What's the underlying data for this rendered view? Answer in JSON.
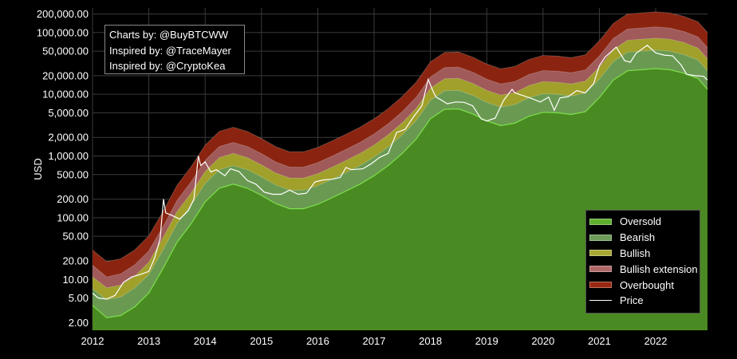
{
  "credits": {
    "line1": "Charts by: @BuyBTCWW",
    "line2": "Inspired by: @TraceMayer",
    "line3": "Inspired by: @CryptoKea"
  },
  "chart_data": {
    "type": "area",
    "ylabel": "USD",
    "yscale": "log",
    "ylim": [
      1.5,
      250000
    ],
    "xlim": [
      2012.0,
      2022.92
    ],
    "y_ticks": [
      2,
      5,
      10,
      20,
      50,
      100,
      200,
      500,
      1000,
      2000,
      5000,
      10000,
      20000,
      50000,
      100000,
      200000
    ],
    "y_tick_labels": [
      "2.00",
      "5.00",
      "10.00",
      "20.00",
      "50.00",
      "100.00",
      "200.00",
      "500.00",
      "1,000.00",
      "2,000.00",
      "5,000.00",
      "10,000.00",
      "20,000.00",
      "50,000.00",
      "100,000.00",
      "200,000.00"
    ],
    "x_ticks": [
      2012,
      2013,
      2014,
      2015,
      2016,
      2017,
      2018,
      2019,
      2020,
      2021,
      2022
    ],
    "x_tick_labels": [
      "2012",
      "2013",
      "2014",
      "2015",
      "2016",
      "2017",
      "2018",
      "2019",
      "2020",
      "2021",
      "2022"
    ],
    "grid": true,
    "legend_position": "bottom-right",
    "x": [
      2012.0,
      2012.25,
      2012.5,
      2012.75,
      2013.0,
      2013.25,
      2013.5,
      2013.75,
      2014.0,
      2014.25,
      2014.5,
      2014.75,
      2015.0,
      2015.25,
      2015.5,
      2015.75,
      2016.0,
      2016.25,
      2016.5,
      2016.75,
      2017.0,
      2017.25,
      2017.5,
      2017.75,
      2018.0,
      2018.25,
      2018.5,
      2018.75,
      2019.0,
      2019.25,
      2019.5,
      2019.75,
      2020.0,
      2020.25,
      2020.5,
      2020.75,
      2021.0,
      2021.25,
      2021.5,
      2021.75,
      2022.0,
      2022.25,
      2022.5,
      2022.75,
      2022.92
    ],
    "bands": [
      {
        "name": "Oversold",
        "color": "#4a8a22",
        "upper": [
          3.8,
          2.4,
          2.6,
          3.6,
          6,
          15,
          40,
          80,
          180,
          300,
          350,
          300,
          230,
          170,
          140,
          140,
          165,
          210,
          270,
          350,
          480,
          700,
          1100,
          1900,
          4000,
          5700,
          5800,
          4800,
          3700,
          3100,
          3400,
          4400,
          5100,
          5000,
          4700,
          5200,
          8800,
          17000,
          24000,
          25000,
          26000,
          25000,
          22000,
          18000,
          12000
        ]
      },
      {
        "name": "Bearish",
        "color": "#6a9a52",
        "upper": [
          7,
          4.7,
          5.2,
          7.3,
          12,
          30,
          80,
          160,
          360,
          600,
          700,
          600,
          460,
          340,
          280,
          280,
          330,
          420,
          540,
          700,
          960,
          1400,
          2200,
          3800,
          8000,
          11400,
          11600,
          9600,
          7400,
          6200,
          6800,
          8800,
          10200,
          10000,
          9400,
          10400,
          17600,
          34000,
          48000,
          50000,
          52000,
          50000,
          44000,
          36000,
          24000
        ]
      },
      {
        "name": "Bullish",
        "color": "#a0a02a",
        "upper": [
          11,
          7.3,
          8.1,
          11.3,
          19,
          47,
          125,
          250,
          560,
          940,
          1100,
          940,
          720,
          530,
          440,
          440,
          515,
          655,
          845,
          1100,
          1500,
          2200,
          3450,
          5950,
          12500,
          17800,
          18100,
          15000,
          11600,
          9700,
          10600,
          13800,
          16000,
          15600,
          14700,
          16300,
          27500,
          53000,
          75000,
          78000,
          81000,
          78000,
          69000,
          56000,
          37500
        ]
      },
      {
        "name": "Bullish extension",
        "color": "#a05a5a",
        "upper": [
          17,
          11,
          12.3,
          17.2,
          29,
          71,
          190,
          380,
          850,
          1420,
          1660,
          1420,
          1090,
          800,
          660,
          660,
          780,
          990,
          1280,
          1660,
          2270,
          3320,
          5220,
          9000,
          19000,
          27000,
          27500,
          22800,
          17600,
          14700,
          16100,
          20900,
          24200,
          23700,
          22300,
          24700,
          41700,
          80500,
          114000,
          118000,
          123000,
          118000,
          104000,
          85000,
          57000
        ]
      },
      {
        "name": "Overbought",
        "color": "#8a2410",
        "upper": [
          30,
          19.5,
          21.6,
          30,
          51,
          125,
          335,
          670,
          1500,
          2500,
          2920,
          2500,
          1920,
          1420,
          1170,
          1170,
          1375,
          1750,
          2250,
          2920,
          4000,
          5850,
          9200,
          15850,
          33400,
          47500,
          48300,
          40000,
          31000,
          25900,
          28300,
          36700,
          42600,
          41600,
          39200,
          43400,
          73300,
          141000,
          200000,
          208000,
          216000,
          208000,
          183000,
          150000,
          100000
        ]
      }
    ],
    "price": {
      "name": "Price",
      "color": "#ffffff",
      "x": [
        2012.0,
        2012.1,
        2012.25,
        2012.4,
        2012.55,
        2012.7,
        2012.85,
        2013.0,
        2013.1,
        2013.2,
        2013.26,
        2013.3,
        2013.4,
        2013.55,
        2013.7,
        2013.8,
        2013.88,
        2013.92,
        2014.0,
        2014.1,
        2014.2,
        2014.35,
        2014.45,
        2014.6,
        2014.75,
        2014.9,
        2015.05,
        2015.2,
        2015.35,
        2015.5,
        2015.65,
        2015.8,
        2015.95,
        2016.1,
        2016.25,
        2016.4,
        2016.5,
        2016.6,
        2016.8,
        2016.95,
        2017.1,
        2017.25,
        2017.4,
        2017.55,
        2017.7,
        2017.85,
        2017.96,
        2018.05,
        2018.1,
        2018.2,
        2018.3,
        2018.45,
        2018.6,
        2018.75,
        2018.9,
        2019.0,
        2019.15,
        2019.3,
        2019.45,
        2019.5,
        2019.65,
        2019.8,
        2019.95,
        2020.1,
        2020.2,
        2020.3,
        2020.45,
        2020.6,
        2020.75,
        2020.9,
        2021.0,
        2021.1,
        2021.3,
        2021.45,
        2021.55,
        2021.65,
        2021.85,
        2022.0,
        2022.15,
        2022.3,
        2022.45,
        2022.55,
        2022.7,
        2022.85,
        2022.92
      ],
      "y": [
        6,
        5,
        4.8,
        5.5,
        9,
        11,
        12,
        13.5,
        22,
        45,
        200,
        120,
        110,
        95,
        130,
        200,
        1000,
        700,
        800,
        550,
        600,
        480,
        620,
        560,
        400,
        350,
        260,
        240,
        240,
        280,
        240,
        250,
        380,
        410,
        420,
        450,
        650,
        600,
        620,
        750,
        950,
        1100,
        2400,
        2700,
        4300,
        6500,
        17500,
        11000,
        9000,
        8000,
        7000,
        7500,
        7400,
        6500,
        4000,
        3700,
        4100,
        8000,
        12000,
        10500,
        9500,
        8500,
        7500,
        9000,
        5500,
        8700,
        9200,
        11500,
        10500,
        15000,
        29000,
        40000,
        58000,
        35000,
        33000,
        46000,
        62000,
        47000,
        43000,
        42000,
        30000,
        21000,
        20000,
        19500,
        17000
      ]
    }
  },
  "legend": [
    {
      "label": "Oversold",
      "color": "#5faf2f",
      "kind": "band"
    },
    {
      "label": "Bearish",
      "color": "#6e9c5a",
      "kind": "band"
    },
    {
      "label": "Bullish",
      "color": "#a8a835",
      "kind": "band"
    },
    {
      "label": "Bullish extension",
      "color": "#b06868",
      "kind": "band"
    },
    {
      "label": "Overbought",
      "color": "#9a2810",
      "kind": "band"
    },
    {
      "label": "Price",
      "color": "#ffffff",
      "kind": "line"
    }
  ]
}
